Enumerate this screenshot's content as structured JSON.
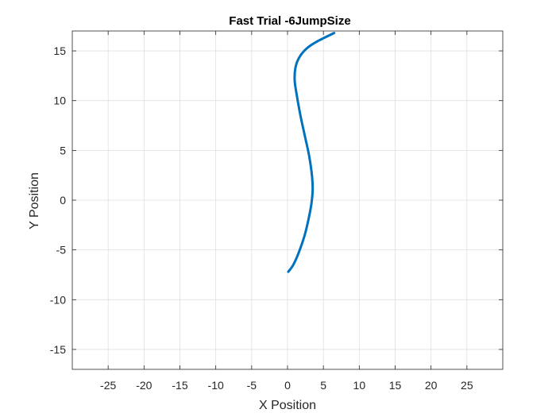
{
  "chart_data": {
    "type": "line",
    "title": "Fast Trial -6JumpSize",
    "xlabel": "X Position",
    "ylabel": "Y Position",
    "xlim": [
      -30,
      30
    ],
    "ylim": [
      -17,
      17
    ],
    "xticks": [
      -25,
      -20,
      -15,
      -10,
      -5,
      0,
      5,
      10,
      15,
      20,
      25
    ],
    "yticks": [
      -15,
      -10,
      -5,
      0,
      5,
      10,
      15
    ],
    "grid": true,
    "line_color": "#0072BD",
    "series": [
      {
        "x": [
          0.1,
          0.8,
          1.6,
          2.4,
          2.9,
          3.3,
          3.5,
          3.4,
          3.0,
          2.4,
          1.8,
          1.3,
          1.0,
          1.1,
          1.6,
          2.6,
          4.0,
          6.5
        ],
        "y": [
          -7.2,
          -6.5,
          -5.2,
          -3.5,
          -2.0,
          -0.5,
          1.0,
          2.5,
          4.5,
          6.5,
          8.5,
          10.5,
          12.0,
          13.3,
          14.3,
          15.2,
          15.9,
          16.8
        ]
      }
    ]
  }
}
